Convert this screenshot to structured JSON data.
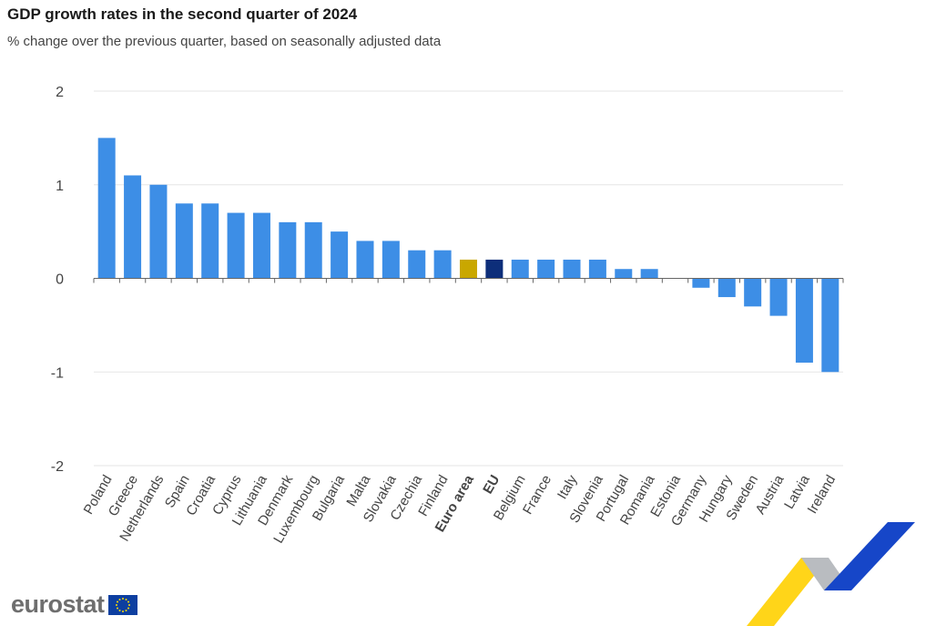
{
  "header": {
    "title": "GDP growth rates in the second quarter of 2024",
    "subtitle": "% change over the previous quarter, based on seasonally adjusted data"
  },
  "footer": {
    "logo_text": "eurostat"
  },
  "colors": {
    "country": "#3d8ee6",
    "euro_area": "#c9a700",
    "eu": "#0d2e7a",
    "grid": "#e6e6e6",
    "axis": "#666666"
  },
  "chart_data": {
    "type": "bar",
    "title": "GDP growth rates in the second quarter of 2024",
    "subtitle": "% change over the previous quarter, based on seasonally adjusted data",
    "xlabel": "",
    "ylabel": "",
    "ylim": [
      -2,
      2
    ],
    "yticks": [
      2,
      1,
      0,
      -1,
      -2
    ],
    "grid": true,
    "categories": [
      "Poland",
      "Greece",
      "Netherlands",
      "Spain",
      "Croatia",
      "Cyprus",
      "Lithuania",
      "Denmark",
      "Luxembourg",
      "Bulgaria",
      "Malta",
      "Slovakia",
      "Czechia",
      "Finland",
      "Euro area",
      "EU",
      "Belgium",
      "France",
      "Italy",
      "Slovenia",
      "Portugal",
      "Romania",
      "Estonia",
      "Germany",
      "Hungary",
      "Sweden",
      "Austria",
      "Latvia",
      "Ireland"
    ],
    "values": [
      1.5,
      1.1,
      1.0,
      0.8,
      0.8,
      0.7,
      0.7,
      0.6,
      0.6,
      0.5,
      0.4,
      0.4,
      0.3,
      0.3,
      0.2,
      0.2,
      0.2,
      0.2,
      0.2,
      0.2,
      0.1,
      0.1,
      0.0,
      -0.1,
      -0.2,
      -0.3,
      -0.4,
      -0.9,
      -1.0
    ],
    "highlight": {
      "Euro area": "euro_area",
      "EU": "eu"
    },
    "bold_categories": [
      "Euro area",
      "EU"
    ]
  }
}
